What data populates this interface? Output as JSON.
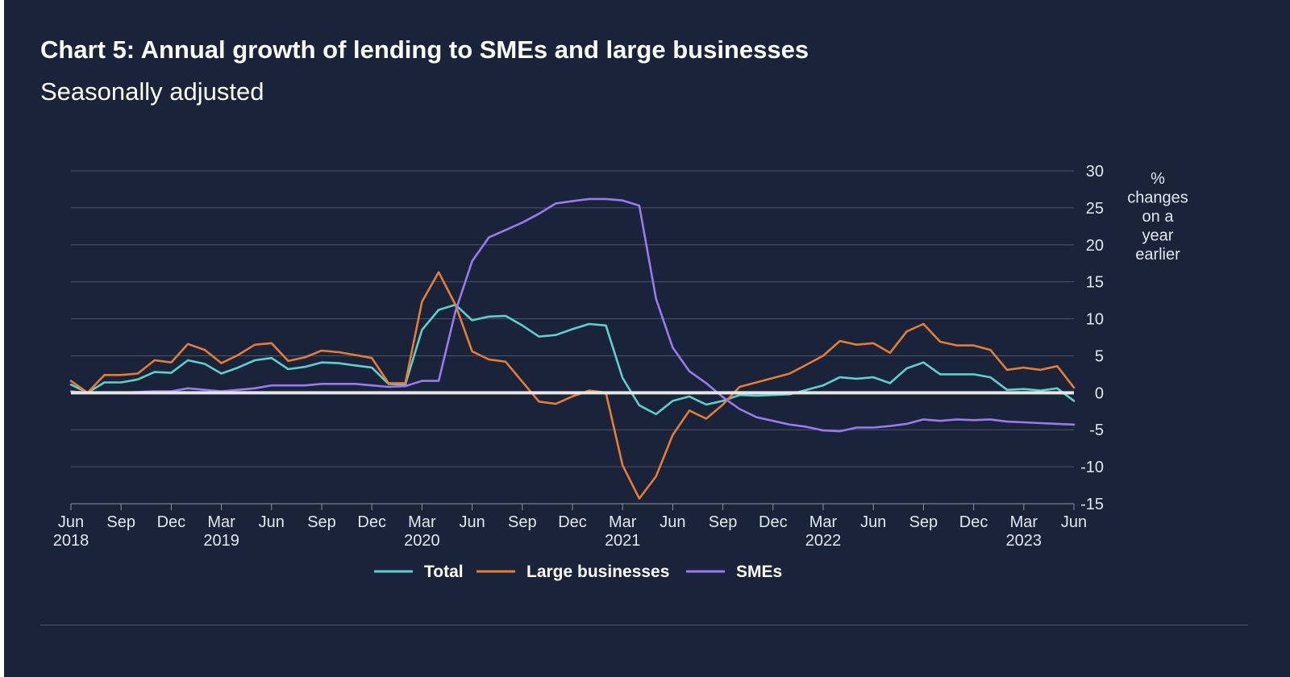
{
  "title": "Chart 5: Annual growth of lending to SMEs and large businesses",
  "subtitle": "Seasonally adjusted",
  "chart_data": {
    "type": "line",
    "title": "Chart 5: Annual growth of lending to SMEs and large businesses",
    "subtitle": "Seasonally adjusted",
    "ylabel": "% changes on a year earlier",
    "ylabel_lines": [
      "%",
      "changes",
      "on a",
      "year",
      "earlier"
    ],
    "ylim": [
      -15,
      30
    ],
    "yticks": [
      30,
      25,
      20,
      15,
      10,
      5,
      0,
      -5,
      -10,
      -15
    ],
    "y_axis_side": "right",
    "grid": true,
    "legend_position": "bottom",
    "x_start": "Jun 2018",
    "x_end": "Jun 2023",
    "x_ticks": [
      {
        "month": "Jun",
        "year": "2018"
      },
      {
        "month": "Sep",
        "year": ""
      },
      {
        "month": "Dec",
        "year": ""
      },
      {
        "month": "Mar",
        "year": "2019"
      },
      {
        "month": "Jun",
        "year": ""
      },
      {
        "month": "Sep",
        "year": ""
      },
      {
        "month": "Dec",
        "year": ""
      },
      {
        "month": "Mar",
        "year": "2020"
      },
      {
        "month": "Jun",
        "year": ""
      },
      {
        "month": "Sep",
        "year": ""
      },
      {
        "month": "Dec",
        "year": ""
      },
      {
        "month": "Mar",
        "year": "2021"
      },
      {
        "month": "Jun",
        "year": ""
      },
      {
        "month": "Sep",
        "year": ""
      },
      {
        "month": "Dec",
        "year": ""
      },
      {
        "month": "Mar",
        "year": "2022"
      },
      {
        "month": "Jun",
        "year": ""
      },
      {
        "month": "Sep",
        "year": ""
      },
      {
        "month": "Dec",
        "year": ""
      },
      {
        "month": "Mar",
        "year": "2023"
      },
      {
        "month": "Jun",
        "year": ""
      }
    ],
    "series": [
      {
        "name": "Total",
        "color": "#5ed0cb",
        "values": [
          1.1,
          0,
          1.4,
          1.4,
          1.8,
          2.8,
          2.7,
          4.4,
          3.9,
          2.6,
          3.4,
          4.4,
          4.7,
          3.2,
          3.5,
          4.1,
          4.0,
          3.7,
          3.4,
          1.2,
          1.1,
          8.5,
          11.2,
          11.9,
          9.8,
          10.3,
          10.4,
          9.1,
          7.6,
          7.8,
          8.6,
          9.3,
          9.1,
          2.0,
          -1.7,
          -2.9,
          -1.1,
          -0.5,
          -1.6,
          -1.1,
          -0.3,
          -0.4,
          -0.3,
          -0.2,
          0.4,
          1.0,
          2.1,
          1.9,
          2.1,
          1.3,
          3.3,
          4.1,
          2.5,
          2.5,
          2.5,
          2.1,
          0.4,
          0.5,
          0.3,
          0.6,
          -1.1
        ]
      },
      {
        "name": "Large businesses",
        "color": "#e87c33",
        "values": [
          1.6,
          0,
          2.4,
          2.4,
          2.6,
          4.4,
          4.1,
          6.6,
          5.8,
          4.0,
          5.1,
          6.5,
          6.7,
          4.3,
          4.8,
          5.7,
          5.5,
          5.1,
          4.7,
          1.3,
          1.3,
          12.3,
          16.3,
          11.9,
          5.6,
          4.5,
          4.2,
          1.5,
          -1.2,
          -1.5,
          -0.5,
          0.3,
          0,
          -9.8,
          -14.3,
          -11.3,
          -5.7,
          -2.4,
          -3.5,
          -1.6,
          0.8,
          1.4,
          2.0,
          2.6,
          3.8,
          5.0,
          7.0,
          6.5,
          6.7,
          5.4,
          8.3,
          9.3,
          6.9,
          6.4,
          6.4,
          5.8,
          3.1,
          3.4,
          3.1,
          3.6,
          0.7
        ]
      },
      {
        "name": "SMEs",
        "color": "#9b79ee",
        "values": [
          0.2,
          0,
          0,
          0,
          0.1,
          0.2,
          0.2,
          0.6,
          0.4,
          0.2,
          0.4,
          0.6,
          1.0,
          1.0,
          1.0,
          1.2,
          1.2,
          1.2,
          1.0,
          0.8,
          0.9,
          1.6,
          1.6,
          11.0,
          17.8,
          21.0,
          22.0,
          23.0,
          24.2,
          25.6,
          25.9,
          26.2,
          26.2,
          26.0,
          25.3,
          12.7,
          6.1,
          2.9,
          1.3,
          -0.6,
          -2.2,
          -3.3,
          -3.8,
          -4.3,
          -4.6,
          -5.1,
          -5.2,
          -4.7,
          -4.7,
          -4.5,
          -4.2,
          -3.6,
          -3.8,
          -3.6,
          -3.7,
          -3.6,
          -3.9,
          -4.0,
          -4.1,
          -4.2,
          -4.3
        ]
      }
    ]
  }
}
